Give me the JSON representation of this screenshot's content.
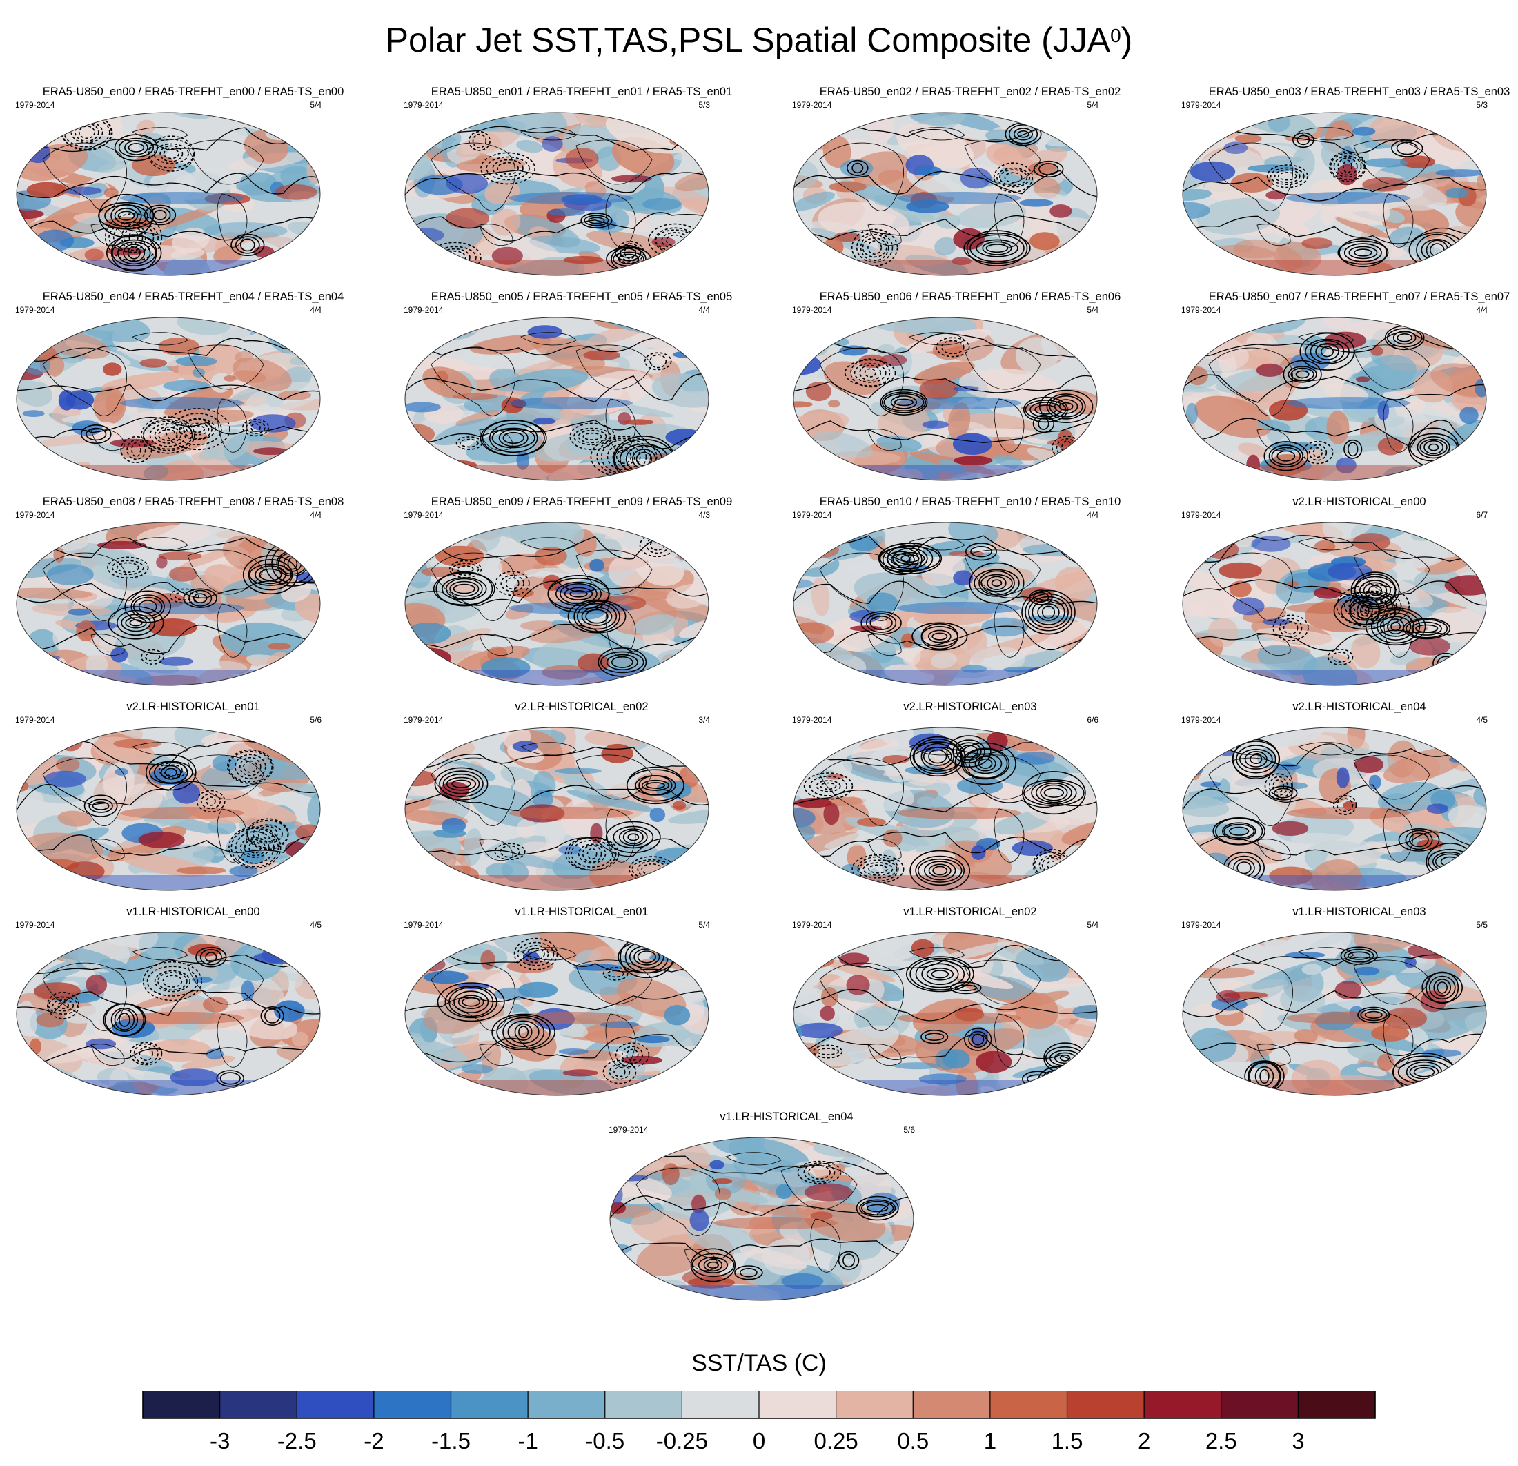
{
  "title": {
    "text": "Polar Jet SST,TAS,PSL Spatial Composite (JJA",
    "superscript": "0",
    "close": ")"
  },
  "chart_data": {
    "type": "heatmap",
    "panels": [
      {
        "title": "ERA5-U850_en00 / ERA5-TREFHT_en00 / ERA5-TS_en00",
        "years": "1979-2014",
        "count": "5/4"
      },
      {
        "title": "ERA5-U850_en01 / ERA5-TREFHT_en01 / ERA5-TS_en01",
        "years": "1979-2014",
        "count": "5/3"
      },
      {
        "title": "ERA5-U850_en02 / ERA5-TREFHT_en02 / ERA5-TS_en02",
        "years": "1979-2014",
        "count": "5/4"
      },
      {
        "title": "ERA5-U850_en03 / ERA5-TREFHT_en03 / ERA5-TS_en03",
        "years": "1979-2014",
        "count": "5/3"
      },
      {
        "title": "ERA5-U850_en04 / ERA5-TREFHT_en04 / ERA5-TS_en04",
        "years": "1979-2014",
        "count": "4/4"
      },
      {
        "title": "ERA5-U850_en05 / ERA5-TREFHT_en05 / ERA5-TS_en05",
        "years": "1979-2014",
        "count": "4/4"
      },
      {
        "title": "ERA5-U850_en06 / ERA5-TREFHT_en06 / ERA5-TS_en06",
        "years": "1979-2014",
        "count": "5/4"
      },
      {
        "title": "ERA5-U850_en07 / ERA5-TREFHT_en07 / ERA5-TS_en07",
        "years": "1979-2014",
        "count": "4/4"
      },
      {
        "title": "ERA5-U850_en08 / ERA5-TREFHT_en08 / ERA5-TS_en08",
        "years": "1979-2014",
        "count": "4/4"
      },
      {
        "title": "ERA5-U850_en09 / ERA5-TREFHT_en09 / ERA5-TS_en09",
        "years": "1979-2014",
        "count": "4/3"
      },
      {
        "title": "ERA5-U850_en10 / ERA5-TREFHT_en10 / ERA5-TS_en10",
        "years": "1979-2014",
        "count": "4/4"
      },
      {
        "title": "v2.LR-HISTORICAL_en00",
        "years": "1979-2014",
        "count": "6/7"
      },
      {
        "title": "v2.LR-HISTORICAL_en01",
        "years": "1979-2014",
        "count": "5/6"
      },
      {
        "title": "v2.LR-HISTORICAL_en02",
        "years": "1979-2014",
        "count": "3/4"
      },
      {
        "title": "v2.LR-HISTORICAL_en03",
        "years": "1979-2014",
        "count": "6/6"
      },
      {
        "title": "v2.LR-HISTORICAL_en04",
        "years": "1979-2014",
        "count": "4/5"
      },
      {
        "title": "v1.LR-HISTORICAL_en00",
        "years": "1979-2014",
        "count": "4/5"
      },
      {
        "title": "v1.LR-HISTORICAL_en01",
        "years": "1979-2014",
        "count": "5/4"
      },
      {
        "title": "v1.LR-HISTORICAL_en02",
        "years": "1979-2014",
        "count": "5/4"
      },
      {
        "title": "v1.LR-HISTORICAL_en03",
        "years": "1979-2014",
        "count": "5/5"
      },
      {
        "title": "v1.LR-HISTORICAL_en04",
        "years": "1979-2014",
        "count": "5/6"
      }
    ],
    "colorbar": {
      "title": "SST/TAS (C)",
      "tick_labels": [
        "-3",
        "-2.5",
        "-2",
        "-1.5",
        "-1",
        "-0.5",
        "-0.25",
        "0",
        "0.25",
        "0.5",
        "1",
        "1.5",
        "2",
        "2.5",
        "3"
      ],
      "colors": [
        "#1c1f4a",
        "#2a3580",
        "#2f4fc0",
        "#2d74c4",
        "#4a93c4",
        "#79afca",
        "#a9c5d0",
        "#d9dde0",
        "#ecdcd9",
        "#e3b3a3",
        "#d48a72",
        "#c96447",
        "#b84130",
        "#96192a",
        "#6c1025",
        "#4a0c16"
      ]
    }
  }
}
